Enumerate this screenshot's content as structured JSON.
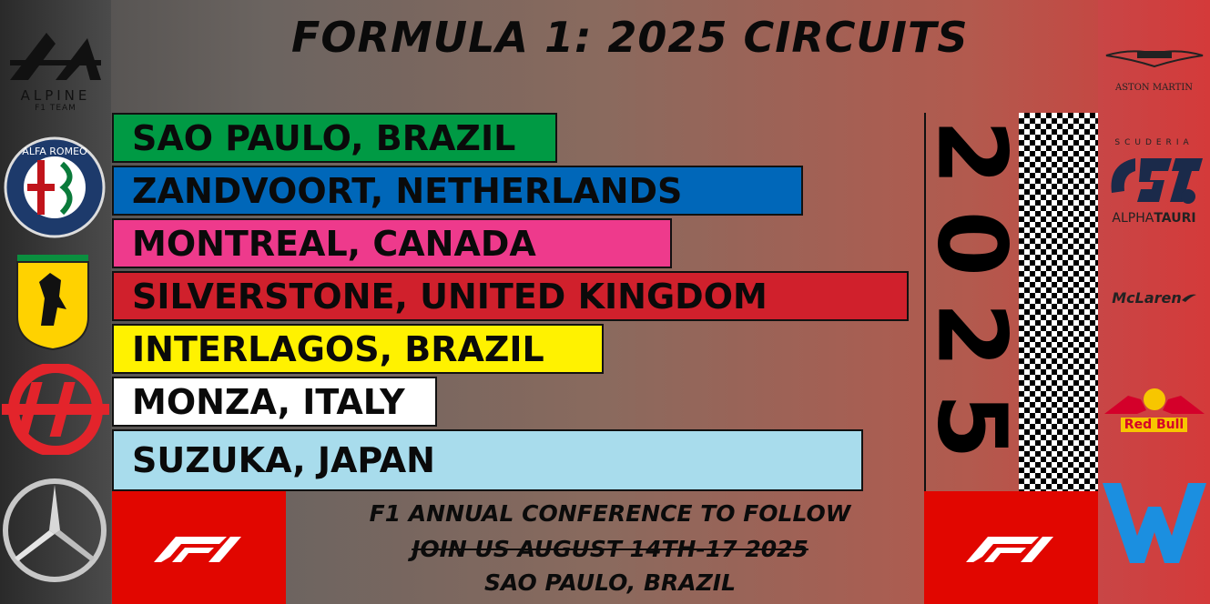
{
  "title": "FORMULA 1: 2025 CIRCUITS",
  "circuits": [
    {
      "label": "SAO PAULO, BRAZIL",
      "color": "#009a44"
    },
    {
      "label": "ZANDVOORT, NETHERLANDS",
      "color": "#0067b9"
    },
    {
      "label": "MONTREAL, CANADA",
      "color": "#ee3a8c"
    },
    {
      "label": "SILVERSTONE, UNITED KINGDOM",
      "color": "#d0202c"
    },
    {
      "label": "INTERLAGOS, BRAZIL",
      "color": "#fff200"
    },
    {
      "label": "MONZA, ITALY",
      "color": "#ffffff"
    },
    {
      "label": "SUZUKA, JAPAN",
      "color": "#a8dcec"
    }
  ],
  "year_label": "2025",
  "footer": {
    "line1": "F1 ANNUAL CONFERENCE TO FOLLOW",
    "line2": "JOIN US AUGUST 14TH-17 2025",
    "line3": "SAO PAULO, BRAZIL"
  },
  "team_logos_left": {
    "alpine_name": "ALPINE",
    "alpine_sub": "F1 TEAM",
    "alfa_romeo": "ALFA ROMEO",
    "icons": [
      "alpine-logo-icon",
      "alfa-romeo-logo-icon",
      "ferrari-logo-icon",
      "haas-logo-icon",
      "mercedes-logo-icon"
    ]
  },
  "team_logos_right": {
    "aston_martin": "ASTON MARTIN",
    "scuderia": "SCUDERIA",
    "alphatauri_a": "ALPHA",
    "alphatauri_b": "TAURI",
    "mclaren": "McLaren",
    "redbull": "Red Bull",
    "icons": [
      "aston-martin-logo-icon",
      "alphatauri-logo-icon",
      "mclaren-logo-icon",
      "redbull-logo-icon",
      "williams-logo-icon"
    ]
  },
  "colors": {
    "f1_red": "#e10600",
    "background_left": "#4a4a4a",
    "background_right": "#d23a3a"
  }
}
